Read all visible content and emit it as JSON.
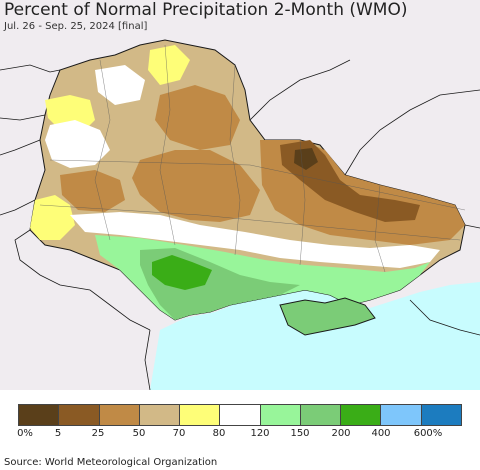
{
  "title": "Percent of Normal Precipitation 2-Month (WMO)",
  "subtitle": "Jul. 26 - Sep. 25, 2024 [final]",
  "source": "Source: World Meteorological Organization",
  "legend": {
    "colors": [
      "#5a3f1a",
      "#8a5a24",
      "#c08a46",
      "#d2b987",
      "#fefe78",
      "#ffffff",
      "#98f59a",
      "#7bcc77",
      "#3aad17",
      "#7ec6fb",
      "#1c7cbf"
    ],
    "labels": [
      "0%",
      "5",
      "25",
      "50",
      "70",
      "80",
      "120",
      "150",
      "200",
      "400",
      "600%"
    ]
  },
  "map": {
    "background_color": "#f0ecf0",
    "sea_color": "#c8fcfe",
    "border_color": "#1a1a1a"
  }
}
